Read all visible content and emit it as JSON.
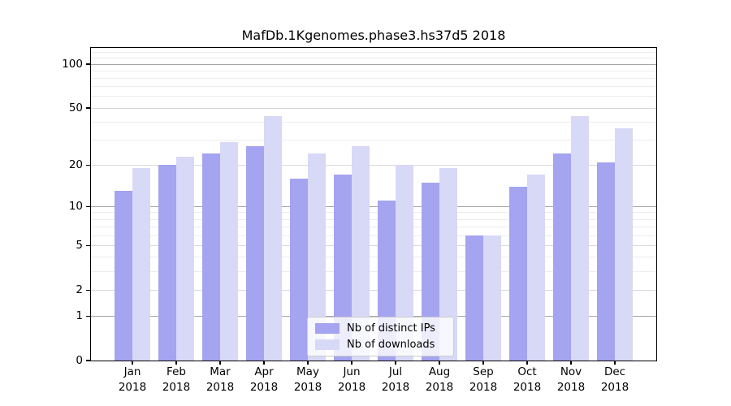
{
  "figure": {
    "title": "MafDb.1Kgenomes.phase3.hs37d5 2018"
  },
  "chart_data": {
    "type": "bar",
    "title": "MafDb.1Kgenomes.phase3.hs37d5 2018",
    "categories": [
      "Jan",
      "Feb",
      "Mar",
      "Apr",
      "May",
      "Jun",
      "Jul",
      "Aug",
      "Sep",
      "Oct",
      "Nov",
      "Dec"
    ],
    "category_year": "2018",
    "series": [
      {
        "name": "Nb of distinct IPs",
        "color": "#a4a4f0",
        "values": [
          13,
          20,
          24,
          27,
          16,
          17,
          11,
          15,
          6,
          14,
          24,
          21
        ]
      },
      {
        "name": "Nb of downloads",
        "color": "#d8d8f7",
        "values": [
          19,
          23,
          29,
          44,
          24,
          27,
          20,
          19,
          6,
          17,
          44,
          36
        ]
      }
    ],
    "xlabel": "",
    "ylabel": "",
    "y_scale": "log1p",
    "y_ticks": [
      100,
      50,
      20,
      10,
      5,
      2,
      1,
      0
    ],
    "y_axis_top_value": 129,
    "grid": {
      "decade_lines": [
        1,
        10,
        100
      ],
      "major_lines": [
        2,
        5,
        20,
        50
      ],
      "minor_lines": [
        3,
        4,
        6,
        7,
        8,
        9,
        30,
        40,
        60,
        70,
        80,
        90,
        110,
        120
      ],
      "decade_color": "#a6a6a6",
      "major_color": "#d9d9d9",
      "minor_color": "#ececec"
    },
    "legend_position": "lower center",
    "legend": {
      "entries": [
        "Nb of distinct IPs",
        "Nb of downloads"
      ]
    }
  }
}
